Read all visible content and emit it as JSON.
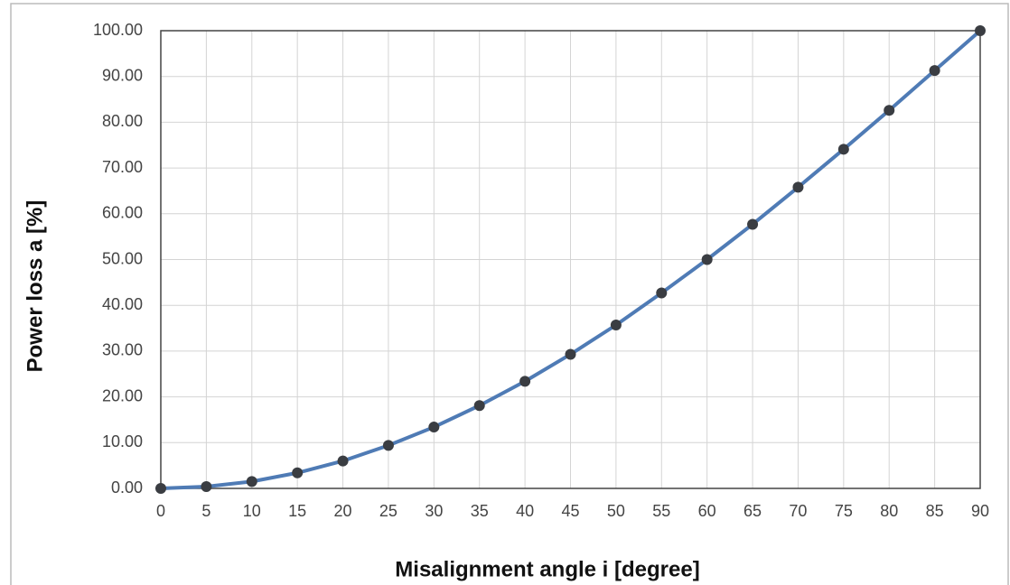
{
  "chart_data": {
    "type": "line",
    "x_label": "Misalignment angle i [degree]",
    "y_label": "Power loss a [%]",
    "x": [
      0,
      5,
      10,
      15,
      20,
      25,
      30,
      35,
      40,
      45,
      50,
      55,
      60,
      65,
      70,
      75,
      80,
      85,
      90
    ],
    "series": [
      {
        "color": "#4f7bb5",
        "marker_color": "#3a3d42",
        "values": [
          0,
          0.4,
          1.5,
          3.4,
          6.0,
          9.4,
          13.4,
          18.1,
          23.4,
          29.3,
          35.7,
          42.7,
          50.0,
          57.7,
          65.8,
          74.1,
          82.6,
          91.3,
          100
        ]
      }
    ],
    "xlim": [
      0,
      90
    ],
    "xticks": [
      0,
      5,
      10,
      15,
      20,
      25,
      30,
      35,
      40,
      45,
      50,
      55,
      60,
      65,
      70,
      75,
      80,
      85,
      90
    ],
    "ylim": [
      0,
      100
    ],
    "yticks": [
      {
        "value": 0,
        "label": "0.00"
      },
      {
        "value": 10,
        "label": "10.00"
      },
      {
        "value": 20,
        "label": "20.00"
      },
      {
        "value": 30,
        "label": "30.00"
      },
      {
        "value": 40,
        "label": "40.00"
      },
      {
        "value": 50,
        "label": "50.00"
      },
      {
        "value": 60,
        "label": "60.00"
      },
      {
        "value": 70,
        "label": "70.00"
      },
      {
        "value": 80,
        "label": "80.00"
      },
      {
        "value": 90,
        "label": "90.00"
      },
      {
        "value": 100,
        "label": "100.00"
      }
    ],
    "grid": true
  }
}
